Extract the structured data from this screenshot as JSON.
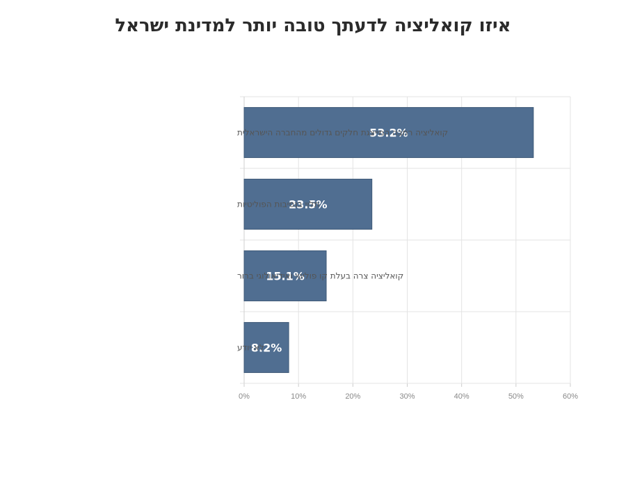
{
  "chart_data": {
    "type": "bar",
    "orientation": "horizontal",
    "title": "איזו קואליציה לדעתך טובה יותר למדינת ישראל",
    "categories": [
      "קואליציה רחבה המייצגת חלקים גדולים מהחברה הישראלית",
      "תלוי בנסיבות הפוליטיות",
      "קואליציה צרה בעלת קו פוליטי ואידיאולוגי ברור",
      "לא יודע"
    ],
    "values": [
      53.2,
      23.5,
      15.1,
      8.2
    ],
    "value_labels": [
      "53.2%",
      "23.5%",
      "15.1%",
      "8.2%"
    ],
    "xlim": [
      0,
      60
    ],
    "x_ticks": [
      "0%",
      "10%",
      "20%",
      "30%",
      "40%",
      "50%",
      "60%"
    ],
    "grid": true,
    "bar_color": "#506e91"
  }
}
